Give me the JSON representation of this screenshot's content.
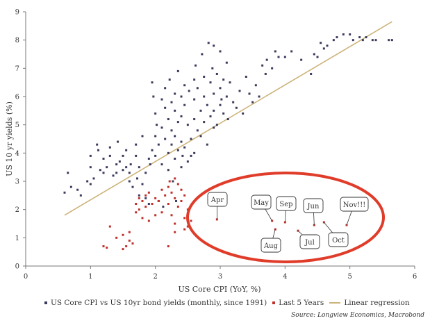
{
  "chart_data": {
    "type": "scatter",
    "xlabel": "US Core CPI (YoY, %)",
    "ylabel": "US 10 yr yields (%)",
    "xlim": [
      0,
      6
    ],
    "ylim": [
      0,
      9
    ],
    "x_ticks": [
      "0",
      "1",
      "2",
      "3",
      "4",
      "5",
      "6"
    ],
    "y_ticks": [
      "0",
      "1",
      "2",
      "3",
      "4",
      "5",
      "6",
      "7",
      "8",
      "9"
    ],
    "grid": false,
    "legend_position": "bottom",
    "series": [
      {
        "name": "US Core CPI vs US 10yr bond yields (monthly, since 1991)",
        "color": "#3b3b5c",
        "marker": "square",
        "points": [
          [
            0.6,
            2.6
          ],
          [
            0.65,
            3.3
          ],
          [
            0.7,
            2.8
          ],
          [
            0.8,
            2.7
          ],
          [
            0.85,
            2.5
          ],
          [
            0.95,
            3.0
          ],
          [
            1.0,
            3.5
          ],
          [
            1.0,
            3.9
          ],
          [
            1.0,
            2.9
          ],
          [
            1.05,
            3.1
          ],
          [
            1.1,
            4.3
          ],
          [
            1.12,
            4.1
          ],
          [
            1.15,
            3.4
          ],
          [
            1.2,
            3.3
          ],
          [
            1.2,
            3.8
          ],
          [
            1.25,
            3.5
          ],
          [
            1.3,
            3.9
          ],
          [
            1.3,
            4.2
          ],
          [
            1.35,
            3.2
          ],
          [
            1.4,
            3.3
          ],
          [
            1.4,
            3.6
          ],
          [
            1.42,
            4.4
          ],
          [
            1.45,
            3.7
          ],
          [
            1.5,
            3.9
          ],
          [
            1.5,
            3.4
          ],
          [
            1.55,
            3.5
          ],
          [
            1.55,
            4.1
          ],
          [
            1.6,
            3.3
          ],
          [
            1.6,
            3.0
          ],
          [
            1.62,
            3.6
          ],
          [
            1.65,
            2.8
          ],
          [
            1.7,
            3.9
          ],
          [
            1.7,
            4.3
          ],
          [
            1.72,
            3.1
          ],
          [
            1.75,
            2.5
          ],
          [
            1.75,
            3.5
          ],
          [
            1.8,
            2.9
          ],
          [
            1.8,
            4.6
          ],
          [
            1.85,
            3.3
          ],
          [
            1.85,
            2.4
          ],
          [
            1.9,
            3.8
          ],
          [
            1.9,
            2.2
          ],
          [
            1.92,
            3.6
          ],
          [
            1.95,
            4.1
          ],
          [
            1.95,
            6.5
          ],
          [
            1.97,
            6.0
          ],
          [
            2.0,
            4.6
          ],
          [
            2.0,
            5.4
          ],
          [
            2.0,
            3.9
          ],
          [
            2.02,
            5.0
          ],
          [
            2.05,
            4.3
          ],
          [
            2.05,
            2.3
          ],
          [
            2.1,
            5.9
          ],
          [
            2.1,
            4.9
          ],
          [
            2.1,
            3.6
          ],
          [
            2.12,
            2.1
          ],
          [
            2.15,
            6.3
          ],
          [
            2.15,
            5.6
          ],
          [
            2.15,
            4.5
          ],
          [
            2.2,
            5.2
          ],
          [
            2.2,
            4.0
          ],
          [
            2.2,
            3.4
          ],
          [
            2.22,
            6.6
          ],
          [
            2.25,
            5.8
          ],
          [
            2.25,
            4.8
          ],
          [
            2.25,
            4.3
          ],
          [
            2.27,
            3.0
          ],
          [
            2.3,
            6.1
          ],
          [
            2.3,
            5.5
          ],
          [
            2.3,
            4.6
          ],
          [
            2.3,
            3.8
          ],
          [
            2.32,
            2.3
          ],
          [
            2.35,
            6.9
          ],
          [
            2.35,
            5.1
          ],
          [
            2.35,
            4.1
          ],
          [
            2.4,
            6.0
          ],
          [
            2.4,
            5.3
          ],
          [
            2.4,
            4.4
          ],
          [
            2.4,
            3.5
          ],
          [
            2.42,
            3.9
          ],
          [
            2.45,
            6.4
          ],
          [
            2.45,
            5.7
          ],
          [
            2.45,
            4.2
          ],
          [
            2.5,
            5.0
          ],
          [
            2.5,
            3.7
          ],
          [
            2.52,
            6.2
          ],
          [
            2.55,
            4.5
          ],
          [
            2.55,
            3.9
          ],
          [
            2.6,
            6.6
          ],
          [
            2.6,
            5.9
          ],
          [
            2.6,
            5.2
          ],
          [
            2.6,
            4.0
          ],
          [
            2.62,
            7.1
          ],
          [
            2.65,
            6.3
          ],
          [
            2.65,
            4.8
          ],
          [
            2.7,
            5.5
          ],
          [
            2.7,
            4.6
          ],
          [
            2.72,
            7.5
          ],
          [
            2.75,
            6.7
          ],
          [
            2.75,
            6.0
          ],
          [
            2.75,
            5.1
          ],
          [
            2.8,
            5.7
          ],
          [
            2.8,
            4.3
          ],
          [
            2.82,
            7.9
          ],
          [
            2.85,
            6.5
          ],
          [
            2.85,
            5.3
          ],
          [
            2.88,
            7.0
          ],
          [
            2.9,
            7.8
          ],
          [
            2.9,
            6.1
          ],
          [
            2.9,
            5.5
          ],
          [
            2.9,
            4.9
          ],
          [
            2.95,
            6.8
          ],
          [
            2.95,
            5.0
          ],
          [
            3.0,
            7.6
          ],
          [
            3.0,
            6.3
          ],
          [
            3.0,
            5.7
          ],
          [
            3.02,
            5.9
          ],
          [
            3.05,
            6.6
          ],
          [
            3.05,
            5.4
          ],
          [
            3.1,
            7.2
          ],
          [
            3.1,
            6.0
          ],
          [
            3.12,
            5.2
          ],
          [
            3.15,
            6.5
          ],
          [
            3.2,
            5.8
          ],
          [
            3.25,
            5.6
          ],
          [
            3.3,
            6.2
          ],
          [
            3.35,
            5.4
          ],
          [
            3.4,
            6.7
          ],
          [
            3.45,
            6.1
          ],
          [
            3.5,
            5.8
          ],
          [
            3.55,
            6.4
          ],
          [
            3.6,
            6.0
          ],
          [
            3.65,
            7.1
          ],
          [
            3.7,
            6.8
          ],
          [
            3.72,
            7.3
          ],
          [
            3.8,
            7.0
          ],
          [
            3.85,
            7.6
          ],
          [
            3.9,
            7.4
          ],
          [
            4.0,
            7.4
          ],
          [
            4.1,
            7.6
          ],
          [
            4.25,
            7.3
          ],
          [
            4.4,
            6.8
          ],
          [
            4.45,
            7.5
          ],
          [
            4.5,
            7.4
          ],
          [
            4.55,
            7.9
          ],
          [
            4.6,
            7.7
          ],
          [
            4.65,
            7.8
          ],
          [
            4.75,
            8.0
          ],
          [
            4.8,
            8.1
          ],
          [
            4.9,
            8.2
          ],
          [
            5.0,
            8.2
          ],
          [
            5.05,
            8.0
          ],
          [
            5.15,
            8.1
          ],
          [
            5.2,
            8.0
          ],
          [
            5.25,
            8.1
          ],
          [
            5.35,
            8.0
          ],
          [
            5.4,
            8.0
          ],
          [
            5.6,
            8.0
          ],
          [
            5.65,
            8.0
          ]
        ]
      },
      {
        "name": "Last 5 Years",
        "color": "#c0302b",
        "marker": "square",
        "points": [
          [
            1.2,
            0.7
          ],
          [
            1.25,
            0.65
          ],
          [
            1.3,
            1.4
          ],
          [
            1.4,
            1.0
          ],
          [
            1.5,
            1.1
          ],
          [
            1.5,
            0.6
          ],
          [
            1.55,
            0.7
          ],
          [
            1.6,
            0.9
          ],
          [
            1.6,
            1.2
          ],
          [
            1.65,
            0.8
          ],
          [
            1.7,
            2.2
          ],
          [
            1.7,
            1.9
          ],
          [
            1.75,
            2.4
          ],
          [
            1.75,
            2.0
          ],
          [
            1.8,
            2.3
          ],
          [
            1.8,
            1.7
          ],
          [
            1.85,
            2.5
          ],
          [
            1.85,
            2.1
          ],
          [
            1.9,
            1.6
          ],
          [
            1.9,
            2.6
          ],
          [
            1.95,
            2.2
          ],
          [
            2.0,
            1.8
          ],
          [
            2.0,
            2.4
          ],
          [
            2.05,
            2.3
          ],
          [
            2.1,
            2.7
          ],
          [
            2.1,
            1.9
          ],
          [
            2.15,
            2.5
          ],
          [
            2.2,
            2.8
          ],
          [
            2.2,
            2.2
          ],
          [
            2.22,
            3.0
          ],
          [
            2.25,
            2.6
          ],
          [
            2.25,
            1.8
          ],
          [
            2.3,
            3.1
          ],
          [
            2.3,
            2.4
          ],
          [
            2.3,
            1.5
          ],
          [
            2.35,
            2.9
          ],
          [
            2.35,
            2.1
          ],
          [
            2.4,
            2.7
          ],
          [
            2.4,
            2.3
          ],
          [
            2.45,
            2.5
          ],
          [
            2.45,
            1.7
          ],
          [
            2.5,
            2.0
          ],
          [
            2.5,
            1.4
          ],
          [
            2.55,
            1.6
          ],
          [
            2.3,
            1.2
          ],
          [
            2.2,
            0.7
          ],
          [
            2.45,
            1.3
          ]
        ]
      },
      {
        "name": "Linear regression",
        "color": "#cdb379",
        "marker": "line",
        "points": [
          [
            0.6,
            1.8
          ],
          [
            5.65,
            8.65
          ]
        ]
      }
    ],
    "annotations": [
      {
        "label": "Apr",
        "x": 2.95,
        "y": 1.65
      },
      {
        "label": "May",
        "x": 3.8,
        "y": 1.6
      },
      {
        "label": "Sep",
        "x": 4.0,
        "y": 1.55
      },
      {
        "label": "Jun",
        "x": 4.45,
        "y": 1.45
      },
      {
        "label": "Nov!!!",
        "x": 4.95,
        "y": 1.45
      },
      {
        "label": "Aug",
        "x": 3.85,
        "y": 1.3
      },
      {
        "label": "Jul",
        "x": 4.2,
        "y": 1.25
      },
      {
        "label": "Oct",
        "x": 4.6,
        "y": 1.55
      }
    ]
  },
  "legend": {
    "series1": "US Core CPI vs US 10yr bond yields (monthly, since 1991)",
    "series2": "Last 5 Years",
    "series3": "Linear regression"
  },
  "source": "Source: Longview Economics, Macrobond"
}
